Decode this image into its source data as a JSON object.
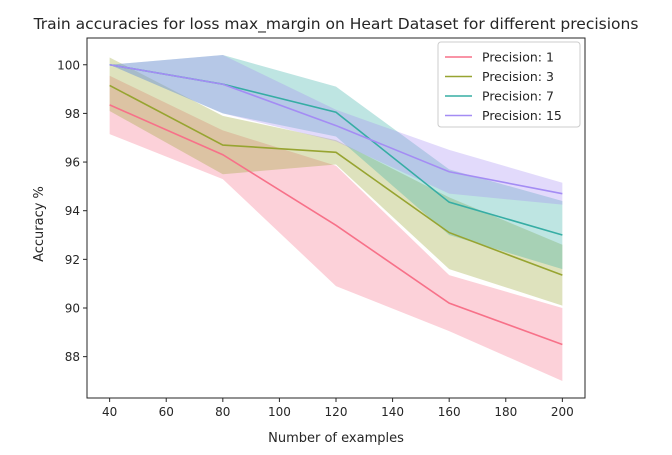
{
  "chart_data": {
    "type": "line",
    "title": "Train accuracies for loss max_margin on Heart Dataset for different precisions",
    "xlabel": "Number of examples",
    "ylabel": "Accuracy %",
    "x": [
      40,
      80,
      120,
      160,
      200
    ],
    "xlim": [
      32,
      208
    ],
    "ylim": [
      86.3,
      101.1
    ],
    "xticks": [
      40,
      60,
      80,
      100,
      120,
      140,
      160,
      180,
      200
    ],
    "yticks": [
      88,
      90,
      92,
      94,
      96,
      98,
      100
    ],
    "grid": false,
    "legend_position": "top-right",
    "series": [
      {
        "name": "Precision: 1",
        "color": "#f77189",
        "values": [
          98.35,
          96.3,
          93.4,
          90.2,
          88.5
        ],
        "lower": [
          97.15,
          95.3,
          90.9,
          89.05,
          87.0
        ],
        "upper": [
          99.55,
          97.3,
          95.85,
          91.35,
          90.0
        ]
      },
      {
        "name": "Precision: 3",
        "color": "#97a431",
        "values": [
          99.15,
          96.7,
          96.4,
          93.1,
          91.35
        ],
        "lower": [
          98.1,
          95.5,
          95.9,
          91.6,
          90.1
        ],
        "upper": [
          100.3,
          97.9,
          96.9,
          94.55,
          92.6
        ]
      },
      {
        "name": "Precision: 7",
        "color": "#36ada4",
        "values": [
          100.0,
          99.2,
          98.05,
          94.35,
          93.0
        ],
        "lower": [
          100.0,
          98.0,
          97.05,
          93.0,
          91.6
        ],
        "upper": [
          100.0,
          100.4,
          99.1,
          95.7,
          94.4
        ]
      },
      {
        "name": "Precision: 15",
        "color": "#a48cf4",
        "values": [
          100.0,
          99.2,
          97.5,
          95.6,
          94.7
        ],
        "lower": [
          100.0,
          98.0,
          96.85,
          94.7,
          94.25
        ],
        "upper": [
          100.0,
          100.4,
          98.15,
          96.5,
          95.15
        ]
      }
    ]
  }
}
